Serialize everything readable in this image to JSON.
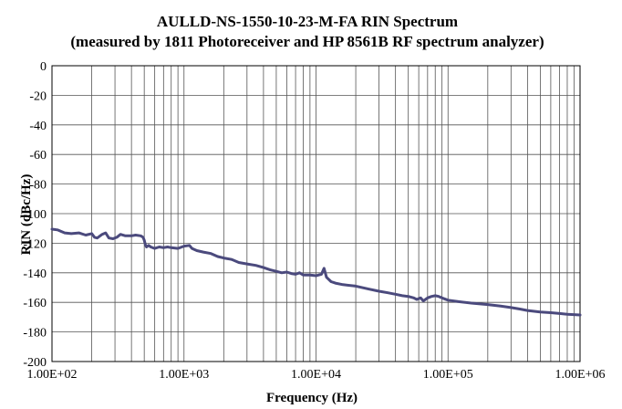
{
  "chart_data": {
    "type": "line",
    "title": "AULLD-NS-1550-10-23-M-FA RIN Spectrum",
    "subtitle": "(measured by 1811 Photoreceiver and HP 8561B RF spectrum analyzer)",
    "xlabel": "Frequency (Hz)",
    "ylabel": "RIN (dBc/Hz)",
    "x_scale": "log",
    "xlim": [
      100,
      1000000
    ],
    "ylim": [
      -200,
      0
    ],
    "grid": true,
    "legend": "none",
    "x_ticks": [
      {
        "value": 100,
        "label": "1.00E+02"
      },
      {
        "value": 1000,
        "label": "1.00E+03"
      },
      {
        "value": 10000,
        "label": "1.00E+04"
      },
      {
        "value": 100000,
        "label": "1.00E+05"
      },
      {
        "value": 1000000,
        "label": "1.00E+06"
      }
    ],
    "y_ticks": [
      {
        "value": 0,
        "label": "0"
      },
      {
        "value": -20,
        "label": "-20"
      },
      {
        "value": -40,
        "label": "-40"
      },
      {
        "value": -60,
        "label": "-60"
      },
      {
        "value": -80,
        "label": "-80"
      },
      {
        "value": -100,
        "label": "-100"
      },
      {
        "value": -120,
        "label": "-120"
      },
      {
        "value": -140,
        "label": "-140"
      },
      {
        "value": -160,
        "label": "-160"
      },
      {
        "value": -180,
        "label": "-180"
      },
      {
        "value": -200,
        "label": "-200"
      }
    ],
    "series": [
      {
        "color": "#4b4a7d",
        "x": [
          100,
          110,
          125,
          140,
          160,
          180,
          200,
          210,
          220,
          240,
          255,
          270,
          290,
          310,
          330,
          360,
          400,
          430,
          470,
          490,
          500,
          510,
          520,
          540,
          560,
          600,
          650,
          700,
          750,
          800,
          900,
          1000,
          1100,
          1150,
          1250,
          1400,
          1600,
          1800,
          2000,
          2300,
          2600,
          3000,
          3500,
          4000,
          4500,
          5000,
          5500,
          6000,
          6500,
          7000,
          7500,
          8000,
          9000,
          10000,
          10500,
          11000,
          11500,
          12000,
          13000,
          14000,
          16000,
          20000,
          25000,
          30000,
          35000,
          40000,
          45000,
          50000,
          55000,
          58000,
          62000,
          65000,
          70000,
          75000,
          80000,
          85000,
          90000,
          100000,
          120000,
          150000,
          200000,
          250000,
          300000,
          350000,
          400000,
          500000,
          600000,
          700000,
          800000,
          1000000
        ],
        "y": [
          -110.5,
          -111,
          -113,
          -113.5,
          -113,
          -114.5,
          -113.5,
          -116,
          -116.5,
          -114,
          -113,
          -116.5,
          -117,
          -116,
          -114,
          -115,
          -115,
          -114.5,
          -115,
          -116,
          -118,
          -121,
          -122.5,
          -121.5,
          -122.5,
          -123.5,
          -122.5,
          -123,
          -122.5,
          -123,
          -123.5,
          -122,
          -121.5,
          -123.5,
          -125,
          -126,
          -127,
          -129,
          -130,
          -131,
          -133,
          -134,
          -135,
          -136.5,
          -138,
          -139,
          -140,
          -139.5,
          -140.5,
          -141,
          -140,
          -141.5,
          -141.5,
          -142,
          -141.5,
          -141,
          -137,
          -143,
          -146,
          -147,
          -148,
          -149,
          -151,
          -152.5,
          -153.5,
          -154.5,
          -155.5,
          -156,
          -157,
          -158,
          -157,
          -159,
          -157,
          -156,
          -155.5,
          -156,
          -157,
          -158.5,
          -159.5,
          -160.5,
          -161.5,
          -162.5,
          -163.5,
          -164.5,
          -165.5,
          -166.5,
          -167,
          -167.5,
          -168,
          -168.5
        ]
      }
    ]
  }
}
